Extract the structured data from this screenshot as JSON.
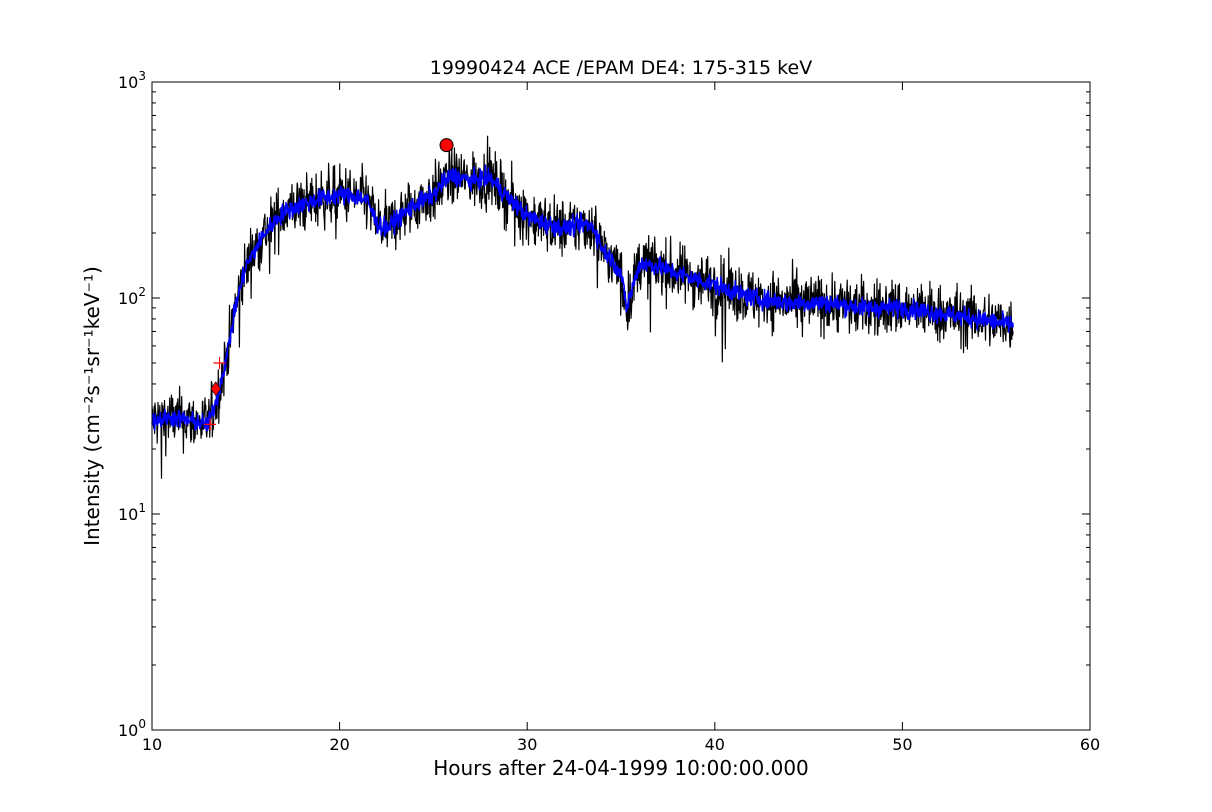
{
  "chart_data": {
    "type": "line",
    "title": "19990424 ACE /EPAM DE4: 175-315 keV",
    "xlabel": "Hours after 24-04-1999 10:00:00.000",
    "ylabel": "Intensity (cm⁻²s⁻¹sr⁻¹keV⁻¹)",
    "xlim": [
      10,
      60
    ],
    "ylim": [
      1,
      1000
    ],
    "yscale": "log",
    "grid": false,
    "x_ticks": [
      10,
      20,
      30,
      40,
      50,
      60
    ],
    "y_ticks": [
      {
        "value": 1,
        "base": "10",
        "exp": "0"
      },
      {
        "value": 10,
        "base": "10",
        "exp": "1"
      },
      {
        "value": 100,
        "base": "10",
        "exp": "2"
      },
      {
        "value": 1000,
        "base": "10",
        "exp": "3"
      }
    ],
    "series": [
      {
        "style": "raw",
        "color": "#000000",
        "x": [
          10.0,
          11.0,
          12.0,
          13.0,
          13.5,
          14.0,
          14.5,
          15.0,
          16.0,
          17.0,
          18.0,
          19.0,
          20.0,
          21.0,
          21.5,
          22.0,
          22.5,
          23.0,
          24.0,
          25.0,
          25.5,
          26.0,
          27.0,
          28.0,
          29.0,
          30.0,
          31.0,
          32.0,
          33.0,
          33.5,
          34.0,
          34.5,
          35.0,
          35.3,
          36.0,
          37.0,
          38.0,
          40.0,
          42.0,
          44.0,
          46.0,
          48.0,
          50.0,
          52.0,
          54.0,
          55.9
        ],
        "y": [
          27,
          28,
          27,
          26,
          35,
          55,
          95,
          140,
          200,
          250,
          270,
          290,
          300,
          295,
          280,
          220,
          210,
          230,
          270,
          300,
          340,
          370,
          350,
          360,
          290,
          240,
          220,
          210,
          220,
          215,
          170,
          150,
          130,
          90,
          145,
          140,
          130,
          115,
          100,
          95,
          95,
          90,
          90,
          85,
          80,
          75
        ],
        "noise": 0.38,
        "samples": 2000
      },
      {
        "style": "smoothed",
        "color": "#0000ff",
        "x": [
          10.0,
          11.0,
          12.0,
          13.0,
          13.5,
          14.0,
          14.5,
          15.0,
          16.0,
          17.0,
          18.0,
          19.0,
          20.0,
          21.0,
          21.5,
          22.0,
          22.5,
          23.0,
          24.0,
          25.0,
          25.5,
          26.0,
          27.0,
          28.0,
          29.0,
          30.0,
          31.0,
          32.0,
          33.0,
          33.5,
          34.0,
          34.5,
          35.0,
          35.3,
          36.0,
          37.0,
          38.0,
          40.0,
          42.0,
          44.0,
          46.0,
          48.0,
          50.0,
          52.0,
          54.0,
          55.9
        ],
        "y": [
          27,
          28,
          27,
          26,
          35,
          55,
          95,
          140,
          200,
          250,
          270,
          290,
          300,
          295,
          280,
          220,
          210,
          230,
          270,
          300,
          340,
          370,
          350,
          360,
          290,
          240,
          220,
          210,
          220,
          215,
          170,
          150,
          130,
          90,
          145,
          140,
          130,
          115,
          100,
          95,
          95,
          90,
          90,
          85,
          80,
          75
        ],
        "noise": 0.12,
        "samples": 2000
      }
    ],
    "markers": [
      {
        "shape": "circle",
        "x": 25.7,
        "y": 510,
        "color": "#ff0000"
      },
      {
        "shape": "diamond",
        "x": 13.4,
        "y": 38,
        "color": "#ff0000"
      },
      {
        "shape": "plus",
        "x": 13.6,
        "y": 50,
        "color": "#ff0000"
      },
      {
        "shape": "plus",
        "x": 13.1,
        "y": 26,
        "color": "#ff0000"
      }
    ]
  }
}
